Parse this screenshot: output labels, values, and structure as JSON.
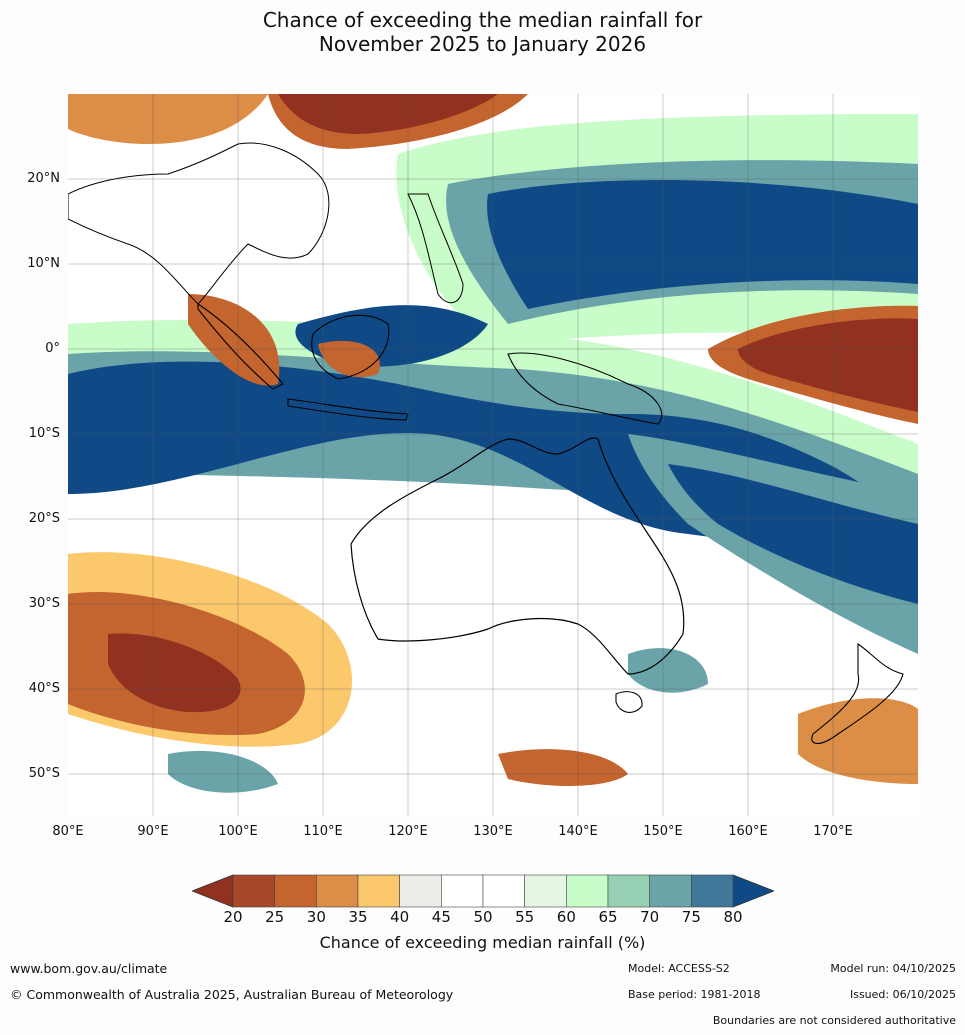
{
  "title_line1": "Chance of exceeding the median rainfall for",
  "title_line2": "November 2025 to January 2026",
  "lat_labels": [
    "20°N",
    "10°N",
    "0°",
    "10°S",
    "20°S",
    "30°S",
    "40°S",
    "50°S"
  ],
  "lon_labels": [
    "80°E",
    "90°E",
    "100°E",
    "110°E",
    "120°E",
    "130°E",
    "140°E",
    "150°E",
    "160°E",
    "170°E"
  ],
  "colorbar": {
    "ticks": [
      "20",
      "25",
      "30",
      "35",
      "40",
      "45",
      "50",
      "55",
      "60",
      "65",
      "70",
      "75",
      "80"
    ],
    "colors": [
      "#a8482a",
      "#c4642e",
      "#dc8d46",
      "#fbc86c",
      "#eeece8",
      "#ffffff",
      "#ffffff",
      "#e6f6e4",
      "#c8fcc8",
      "#98d0b4",
      "#6aa4a8",
      "#40789c"
    ],
    "under_color": "#913220",
    "over_color": "#0f4a87",
    "label": "Chance of exceeding median rainfall (%)"
  },
  "footer": {
    "website": "www.bom.gov.au/climate",
    "copyright": "© Commonwealth of Australia 2025, Australian Bureau of Meteorology",
    "model": "Model: ACCESS-S2",
    "base_period": "Base period: 1981-2018",
    "model_run": "Model run: 04/10/2025",
    "issued": "Issued: 06/10/2025",
    "disclaimer": "Boundaries are not considered authoritative"
  }
}
